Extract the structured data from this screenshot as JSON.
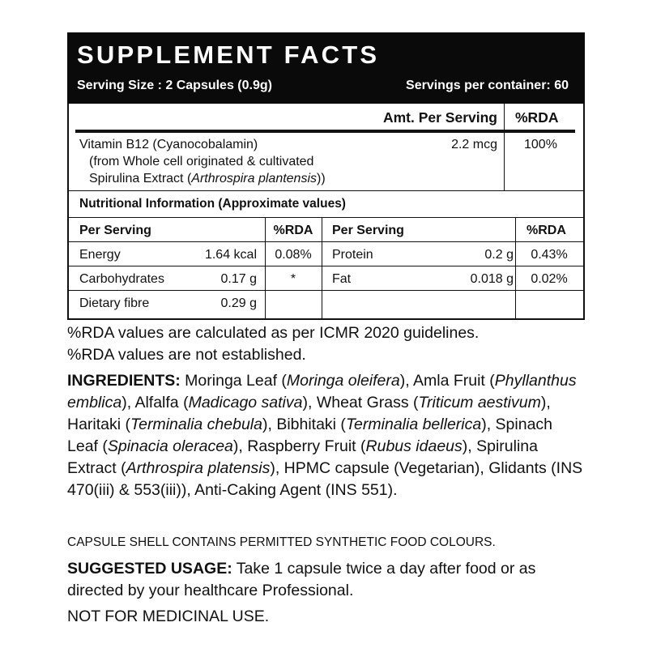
{
  "header": {
    "title": "SUPPLEMENT FACTS",
    "serving_size": "Serving Size : 2 Capsules (0.9g)",
    "servings_per_container": "Servings per container: 60"
  },
  "vitamin_table": {
    "col_amount": "Amt. Per Serving",
    "col_rda": "%RDA",
    "row": {
      "name": "Vitamin B12 (Cyanocobalamin)",
      "source_line1": "(from Whole cell originated & cultivated",
      "source_line2_prefix": "Spirulina Extract (",
      "source_line2_italic": "Arthrospira plantensis",
      "source_line2_suffix": "))",
      "amount": "2.2 mcg",
      "rda": "100%"
    }
  },
  "nutrition": {
    "title": "Nutritional Information (Approximate values)",
    "headers": [
      "Per Serving",
      "%RDA",
      "Per Serving",
      "%RDA"
    ],
    "rows": [
      {
        "name1": "Energy",
        "value1": "1.64 kcal",
        "rda1": "0.08%",
        "name2": "Protein",
        "value2": "0.2 g",
        "rda2": "0.43%"
      },
      {
        "name1": "Carbohydrates",
        "value1": "0.17 g",
        "rda1": "*",
        "name2": "Fat",
        "value2": "0.018 g",
        "rda2": "0.02%"
      },
      {
        "name1": "Dietary fibre",
        "value1": "0.29 g",
        "rda1": "",
        "name2": "",
        "value2": "",
        "rda2": ""
      }
    ]
  },
  "notes": [
    "%RDA values are calculated as per ICMR 2020 guidelines.",
    "%RDA values are not established."
  ],
  "ingredients": {
    "label": "INGREDIENTS:",
    "parts": [
      {
        "text": " Moringa Leaf (",
        "italic": false
      },
      {
        "text": "Moringa oleifera",
        "italic": true
      },
      {
        "text": "), Amla Fruit (",
        "italic": false
      },
      {
        "text": "Phyllanthus emblica",
        "italic": true
      },
      {
        "text": "), Alfalfa (",
        "italic": false
      },
      {
        "text": "Madicago sativa",
        "italic": true
      },
      {
        "text": "), Wheat Grass (",
        "italic": false
      },
      {
        "text": "Triticum aestivum",
        "italic": true
      },
      {
        "text": "), Haritaki (",
        "italic": false
      },
      {
        "text": "Terminalia chebula",
        "italic": true
      },
      {
        "text": "), Bibhitaki (",
        "italic": false
      },
      {
        "text": "Terminalia bellerica",
        "italic": true
      },
      {
        "text": "), Spinach Leaf (",
        "italic": false
      },
      {
        "text": "Spinacia oleracea",
        "italic": true
      },
      {
        "text": "), Raspberry Fruit (",
        "italic": false
      },
      {
        "text": "Rubus idaeus",
        "italic": true
      },
      {
        "text": "), Spirulina Extract (",
        "italic": false
      },
      {
        "text": "Arthrospira platensis",
        "italic": true
      },
      {
        "text": "), HPMC capsule (Vegetarian), Glidants (INS 470(iii) & 553(iii)), Anti-Caking Agent (INS 551).",
        "italic": false
      }
    ]
  },
  "capsule_note": "CAPSULE SHELL CONTAINS PERMITTED SYNTHETIC FOOD COLOURS.",
  "usage": {
    "label": "SUGGESTED USAGE:",
    "text": " Take 1 capsule twice a day after food or as directed by your healthcare Professional."
  },
  "disclaimer": "NOT FOR MEDICINAL USE."
}
